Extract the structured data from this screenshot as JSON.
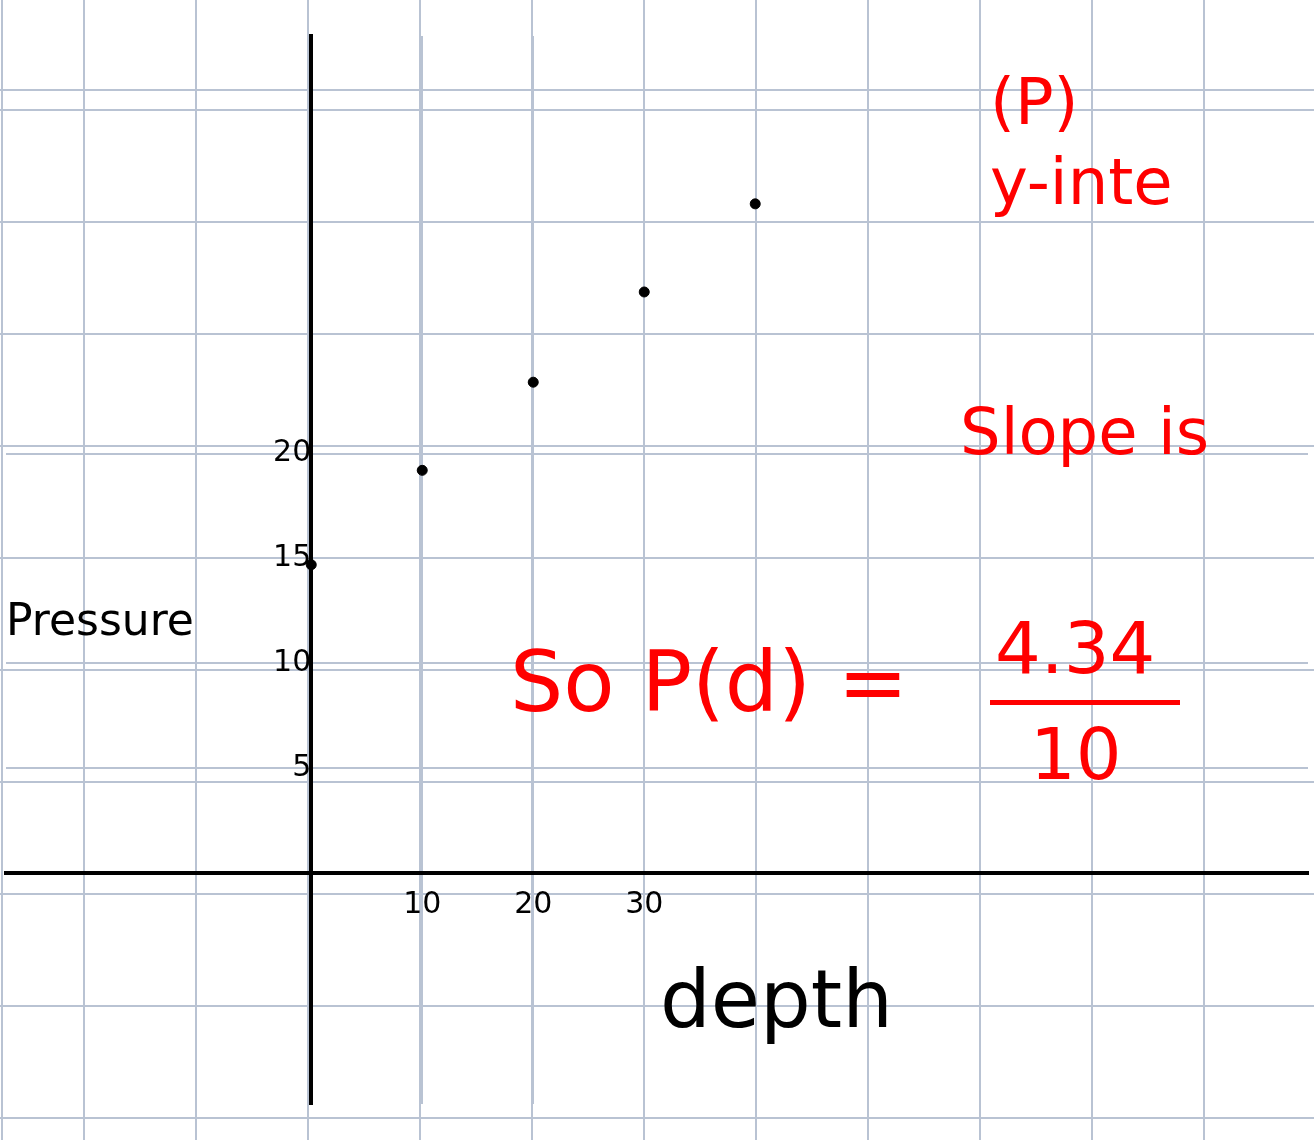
{
  "chart_data": {
    "type": "scatter",
    "x": [
      0,
      10,
      20,
      30,
      40
    ],
    "values": [
      14.7,
      19.2,
      23.4,
      27.7,
      31.9
    ],
    "color": "#000000",
    "marker": "circle",
    "x_label": "depth",
    "y_label": "Pressure",
    "xlim": [
      -27.5,
      89.8
    ],
    "ylim": [
      -11,
      39.9
    ],
    "xticks": [
      10,
      20,
      30
    ],
    "yticks": [
      5,
      10,
      15,
      20
    ],
    "grid": true,
    "annotations": [
      "(P)",
      "y-inte",
      "Slope is",
      "So P(d) =",
      "4.34",
      "10"
    ]
  }
}
